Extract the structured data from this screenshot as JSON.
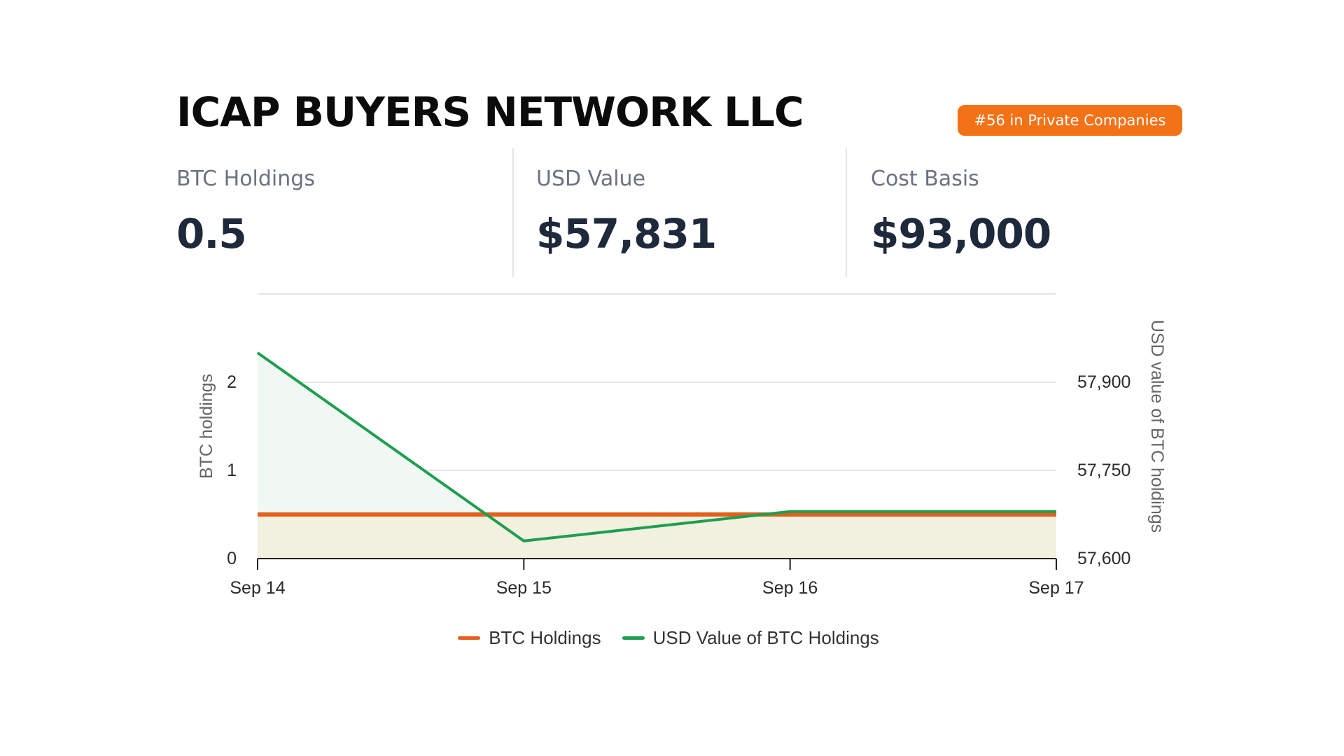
{
  "header": {
    "title": "ICAP BUYERS NETWORK LLC",
    "rank_badge": "#56 in Private Companies"
  },
  "stats": [
    {
      "label": "BTC Holdings",
      "value": "0.5"
    },
    {
      "label": "USD Value",
      "value": "$57,831"
    },
    {
      "label": "Cost Basis",
      "value": "$93,000"
    }
  ],
  "colors": {
    "accent": "#f47216",
    "btc_line": "#e1601b",
    "usd_line": "#1e9e50",
    "btc_fill": "#f2f0de",
    "usd_fill": "#f1f7f3"
  },
  "chart_data": {
    "type": "line",
    "x": [
      "Sep 14",
      "Sep 15",
      "Sep 16",
      "Sep 17"
    ],
    "series": [
      {
        "name": "BTC Holdings",
        "axis": "left",
        "values": [
          0.5,
          0.5,
          0.5,
          0.5
        ],
        "fill": true
      },
      {
        "name": "USD Value of BTC Holdings",
        "axis": "right",
        "values": [
          57950,
          57630,
          57680,
          57680
        ],
        "fill": true
      }
    ],
    "y_left": {
      "label": "BTC holdings",
      "ticks": [
        0,
        1,
        2
      ],
      "ylim": [
        0,
        3
      ]
    },
    "y_right": {
      "label": "USD value of BTC holdings",
      "ticks": [
        "57,600",
        "57,750",
        "57,900"
      ],
      "tick_values": [
        57600,
        57750,
        57900
      ],
      "ylim": [
        57600,
        58050
      ]
    },
    "grid": true,
    "legend_position": "bottom-center"
  }
}
